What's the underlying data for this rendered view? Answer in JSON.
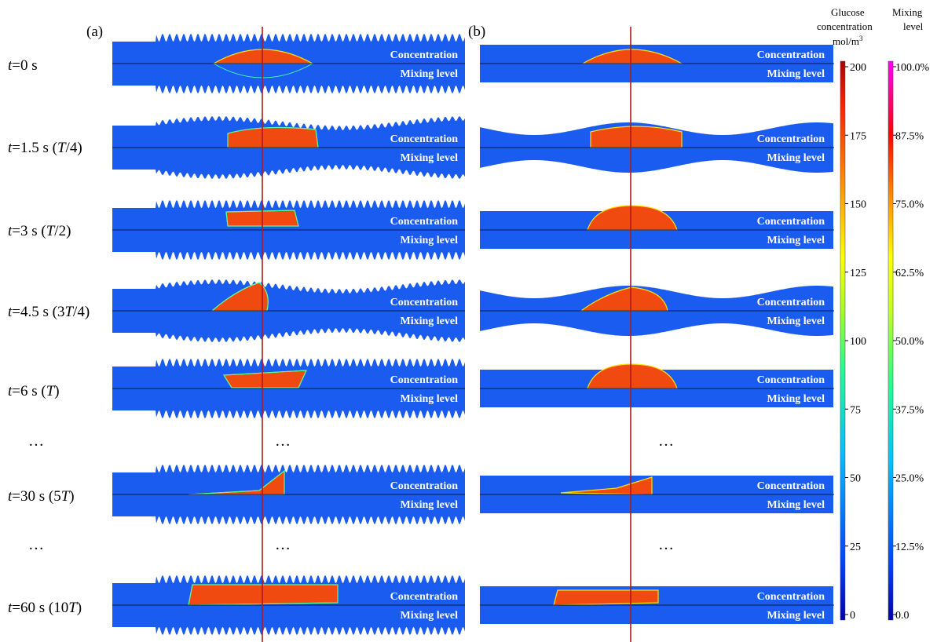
{
  "panels": [
    {
      "label": "(a)",
      "channel": "corrugated"
    },
    {
      "label": "(b)",
      "channel": "wavy"
    }
  ],
  "rows": [
    {
      "t": "t",
      "rest": "=0 s",
      "period": "",
      "close": "",
      "kind": "state"
    },
    {
      "t": "t",
      "rest": "=1.5 s (",
      "period": "T",
      "close": "/4)",
      "kind": "state"
    },
    {
      "t": "t",
      "rest": "=3 s (",
      "period": "T",
      "close": "/2)",
      "kind": "state"
    },
    {
      "t": "t",
      "rest": "=4.5 s (3",
      "period": "T",
      "close": "/4)",
      "kind": "state"
    },
    {
      "t": "t",
      "rest": "=6 s (",
      "period": "T",
      "close": ")",
      "kind": "state"
    },
    {
      "t": "t",
      "rest": "=30 s (5",
      "period": "T",
      "close": ")",
      "kind": "state"
    },
    {
      "t": "t",
      "rest": "=60 s (10",
      "period": "T",
      "close": ")",
      "kind": "state"
    }
  ],
  "ellipsis": "…",
  "ellipsis_center": "· · ·",
  "field_labels": {
    "top": "Concentration",
    "bottom": "Mixing level"
  },
  "colorbar_concentration": {
    "title_line1": "Glucose",
    "title_line2": "concentration",
    "unit_base": "mol/m",
    "unit_sup": "3",
    "ticks": [
      "200",
      "175",
      "150",
      "125",
      "100",
      "75",
      "50",
      "25",
      "0"
    ]
  },
  "colorbar_mixing": {
    "title_line1": "Mixing",
    "title_line2": "level",
    "ticks": [
      "100.0%",
      "87.5%",
      "75.0%",
      "62.5%",
      "50.0%",
      "37.5%",
      "25.0%",
      "12.5%",
      "0.0"
    ]
  },
  "colors": {
    "background_field": "#1a5cf0",
    "droplet": "#f04a10",
    "marker_line": "#b01818",
    "divider_line": "#0a1a4a"
  }
}
